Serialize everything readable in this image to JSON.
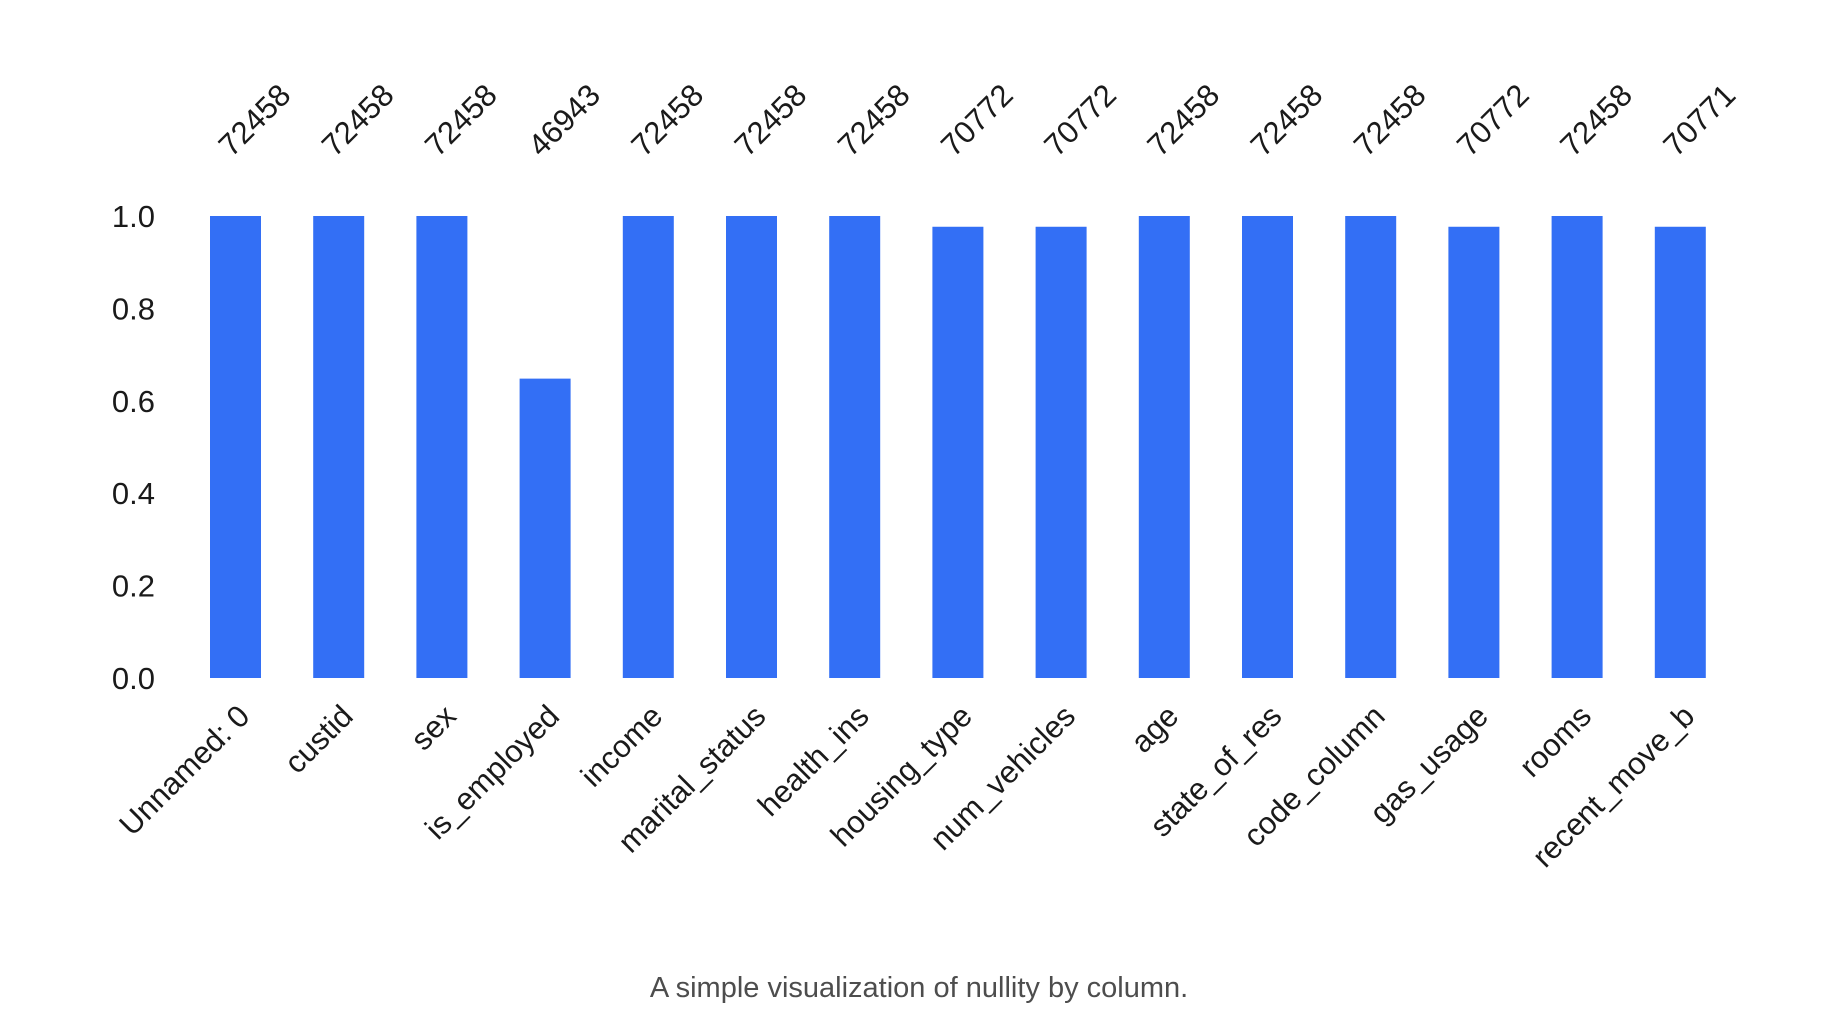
{
  "chart_data": {
    "type": "bar",
    "categories": [
      "Unnamed: 0",
      "custid",
      "sex",
      "is_employed",
      "income",
      "marital_status",
      "health_ins",
      "housing_type",
      "num_vehicles",
      "age",
      "state_of_res",
      "code_column",
      "gas_usage",
      "rooms",
      "recent_move_b"
    ],
    "values": [
      1.0,
      1.0,
      1.0,
      0.648,
      1.0,
      1.0,
      1.0,
      0.9767,
      0.9767,
      1.0,
      1.0,
      1.0,
      0.9767,
      1.0,
      0.9767
    ],
    "counts": [
      "72458",
      "72458",
      "72458",
      "46943",
      "72458",
      "72458",
      "72458",
      "70772",
      "70772",
      "72458",
      "72458",
      "72458",
      "70772",
      "72458",
      "70771"
    ],
    "yticks": [
      "0.0",
      "0.2",
      "0.4",
      "0.6",
      "0.8",
      "1.0"
    ],
    "ylim": [
      0,
      1
    ],
    "grid": false,
    "bar_color": "#336ff5"
  },
  "caption": "A simple visualization of nullity by column."
}
